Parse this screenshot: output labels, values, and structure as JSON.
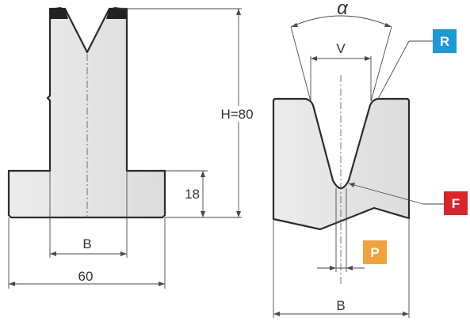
{
  "left_view": {
    "height_label": "H=80",
    "flange_height_label": "18",
    "inner_width_label": "B",
    "total_width_label": "60"
  },
  "right_view": {
    "angle_label": "α",
    "opening_label": "V",
    "width_label": "B",
    "callouts": [
      {
        "label": "R",
        "color": "#1a9bd7"
      },
      {
        "label": "F",
        "color": "#d9262c"
      },
      {
        "label": "P",
        "color": "#f2a23a"
      }
    ]
  },
  "colors": {
    "part_fill": "#e3e3e3",
    "outline": "#2b2b2b",
    "dimension_line": "#4a4a4a"
  }
}
